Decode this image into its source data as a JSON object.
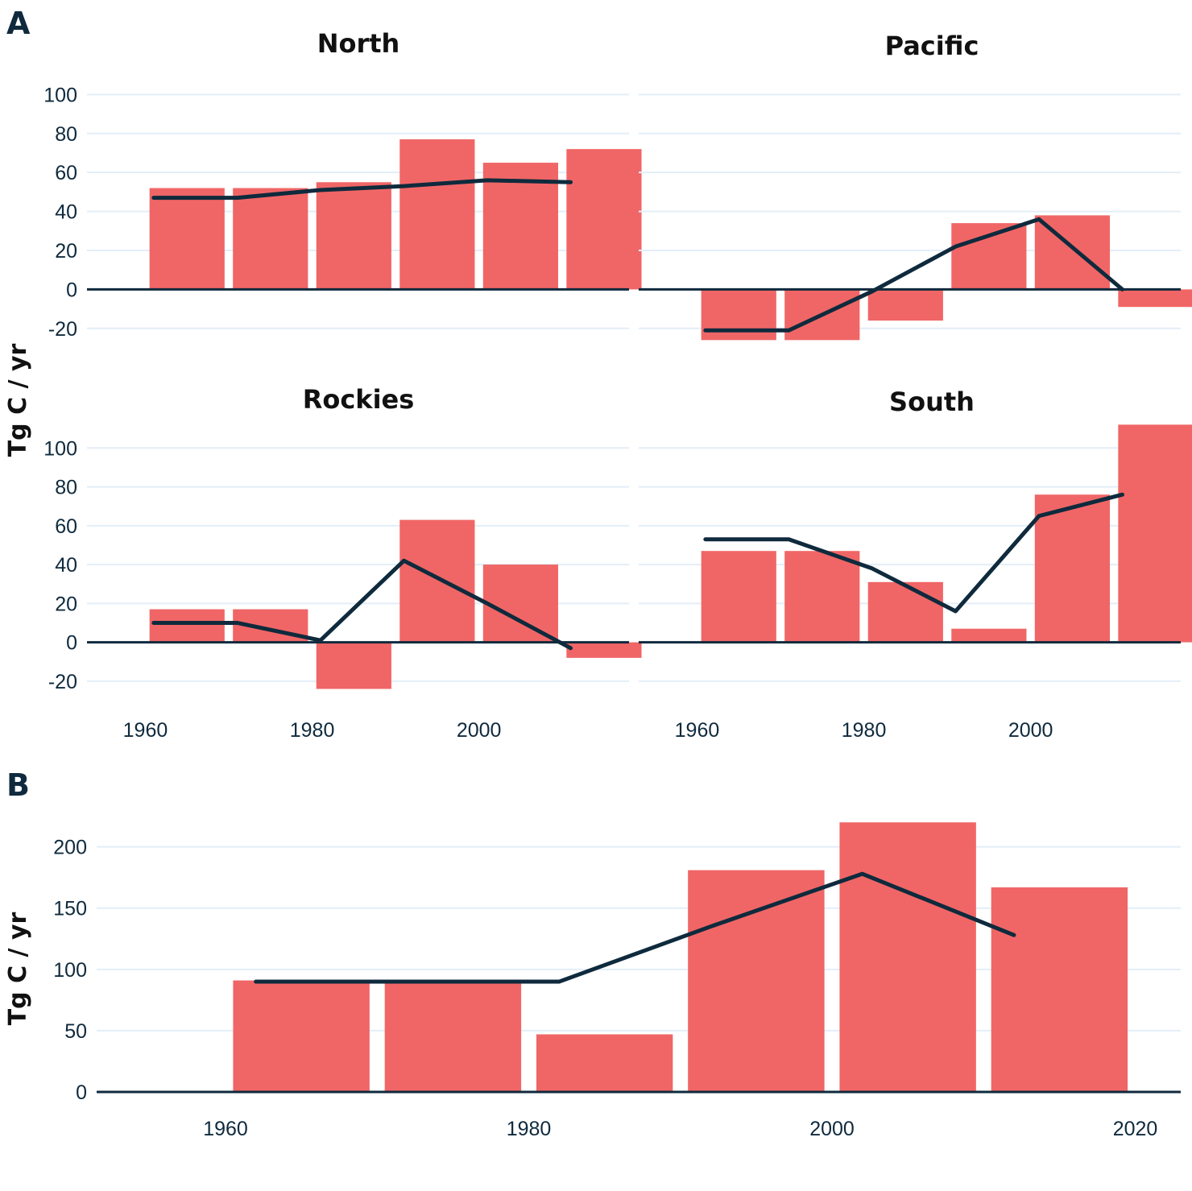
{
  "panel_a": {
    "letter": "A",
    "ylabel": "Tg C / yr"
  },
  "panel_b": {
    "letter": "B",
    "ylabel": "Tg C / yr"
  },
  "colors": {
    "bar": "#f06666",
    "line": "#0f2a3d",
    "grid": "#e3eef8",
    "text": "#0f2a3d"
  },
  "chart_data": [
    {
      "type": "bar",
      "title": "North",
      "x": [
        1960,
        1970,
        1980,
        1990,
        2000,
        2010
      ],
      "series": [
        {
          "type": "bar",
          "values": [
            52,
            52,
            55,
            77,
            65,
            72
          ]
        },
        {
          "type": "line",
          "x": [
            1961,
            1971,
            1981,
            1991,
            2001,
            2011
          ],
          "values": [
            47,
            47,
            51,
            53,
            56,
            55
          ]
        }
      ],
      "xticks": [
        1960,
        1980,
        2000
      ],
      "yticks": [
        -20,
        0,
        20,
        40,
        60,
        80,
        100
      ],
      "xlim": [
        1953,
        2018
      ],
      "ylim": [
        -30,
        108
      ]
    },
    {
      "type": "bar",
      "title": "Pacific",
      "x": [
        1960,
        1970,
        1980,
        1990,
        2000,
        2010
      ],
      "series": [
        {
          "type": "bar",
          "values": [
            -26,
            -26,
            -16,
            34,
            38,
            -9
          ]
        },
        {
          "type": "line",
          "x": [
            1961,
            1971,
            1981,
            1991,
            2001,
            2011
          ],
          "values": [
            -21,
            -21,
            -1,
            22,
            36,
            0
          ]
        }
      ],
      "xticks": [
        1960,
        1980,
        2000
      ],
      "yticks": [
        -20,
        0,
        20,
        40,
        60,
        80,
        100
      ],
      "xlim": [
        1953,
        2018
      ],
      "ylim": [
        -30,
        108
      ]
    },
    {
      "type": "bar",
      "title": "Rockies",
      "x": [
        1960,
        1970,
        1980,
        1990,
        2000,
        2010
      ],
      "series": [
        {
          "type": "bar",
          "values": [
            17,
            17,
            -24,
            63,
            40,
            -8
          ]
        },
        {
          "type": "line",
          "x": [
            1961,
            1971,
            1981,
            1991,
            2001,
            2011
          ],
          "values": [
            10,
            10,
            1,
            42,
            20,
            -3
          ]
        }
      ],
      "xticks": [
        1960,
        1980,
        2000
      ],
      "yticks": [
        -20,
        0,
        20,
        40,
        60,
        80,
        100
      ],
      "xlim": [
        1953,
        2018
      ],
      "ylim": [
        -30,
        108
      ]
    },
    {
      "type": "bar",
      "title": "South",
      "x": [
        1960,
        1970,
        1980,
        1990,
        2000,
        2010
      ],
      "series": [
        {
          "type": "bar",
          "values": [
            47,
            47,
            31,
            7,
            76,
            112
          ]
        },
        {
          "type": "line",
          "x": [
            1961,
            1971,
            1981,
            1991,
            2001,
            2011
          ],
          "values": [
            53,
            53,
            38,
            16,
            65,
            76
          ]
        }
      ],
      "xticks": [
        1960,
        1980,
        2000
      ],
      "yticks": [
        -20,
        0,
        20,
        40,
        60,
        80,
        100
      ],
      "xlim": [
        1953,
        2018
      ],
      "ylim": [
        -30,
        108
      ]
    },
    {
      "type": "bar",
      "title": "",
      "x": [
        1960,
        1970,
        1980,
        1990,
        2000,
        2010
      ],
      "series": [
        {
          "type": "bar",
          "values": [
            91,
            91,
            47,
            181,
            220,
            167
          ]
        },
        {
          "type": "line",
          "x": [
            1962,
            1972,
            1982,
            1992,
            2002,
            2012
          ],
          "values": [
            90,
            90,
            90,
            135,
            178,
            128
          ]
        }
      ],
      "xticks": [
        1960,
        1980,
        2000,
        2020
      ],
      "yticks": [
        0,
        50,
        100,
        150,
        200
      ],
      "xlim": [
        1951.5,
        2023
      ],
      "ylim": [
        0,
        230
      ]
    }
  ]
}
